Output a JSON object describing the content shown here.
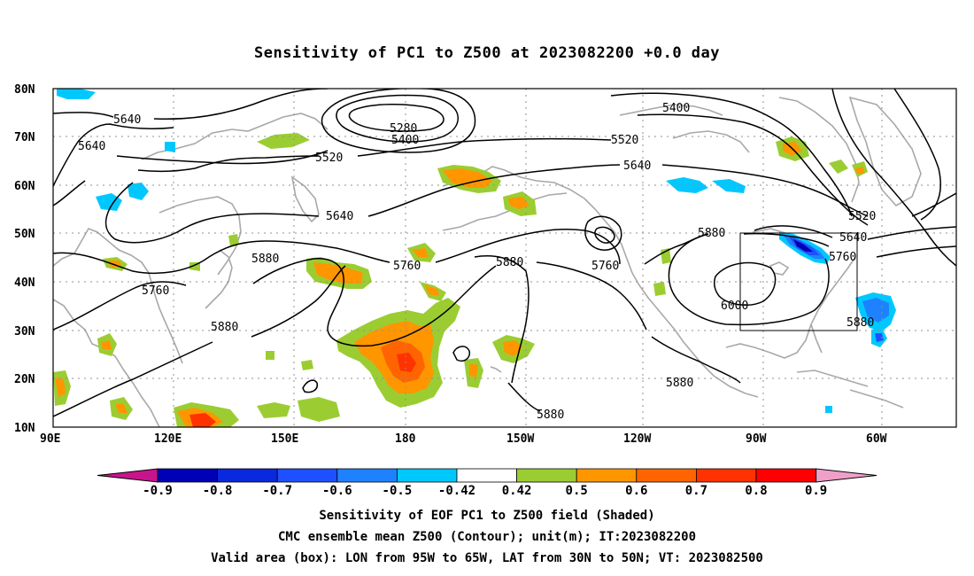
{
  "title": "Sensitivity of PC1 to Z500 at 2023082200 +0.0 day",
  "map": {
    "lat_labels": [
      "80N",
      "70N",
      "60N",
      "50N",
      "40N",
      "30N",
      "20N",
      "10N"
    ],
    "lon_labels": [
      "90E",
      "120E",
      "150E",
      "180",
      "150W",
      "120W",
      "90W",
      "60W"
    ],
    "contour_labels": [
      "5640",
      "5640",
      "5520",
      "5280",
      "5400",
      "5400",
      "5520",
      "5640",
      "5640",
      "5520",
      "5640",
      "5760",
      "5880",
      "5760",
      "5880",
      "5760",
      "5880",
      "6000",
      "5880",
      "5880",
      "5880",
      "5760",
      "5880"
    ],
    "valid_box": {
      "lon_from": "95W",
      "lon_to": "65W",
      "lat_from": "30N",
      "lat_to": "50N"
    }
  },
  "colorbar": {
    "labels": [
      "-0.9",
      "-0.8",
      "-0.7",
      "-0.6",
      "-0.5",
      "-0.42",
      "0.42",
      "0.5",
      "0.6",
      "0.7",
      "0.8",
      "0.9"
    ],
    "colors": [
      "#c8148c",
      "#0000b4",
      "#0a28dc",
      "#1e50ff",
      "#1e82ff",
      "#00c8ff",
      "#ffffff",
      "#9bcd32",
      "#ff9600",
      "#ff6400",
      "#ff3200",
      "#ff0000",
      "#f0a0c8"
    ]
  },
  "captions": {
    "line1": "Sensitivity of EOF PC1 to Z500 field (Shaded)",
    "line2": "CMC ensemble mean Z500 (Contour); unit(m); IT:2023082200",
    "line3": "Valid area (box): LON from 95W to 65W, LAT from 30N to 50N; VT: 2023082500"
  }
}
